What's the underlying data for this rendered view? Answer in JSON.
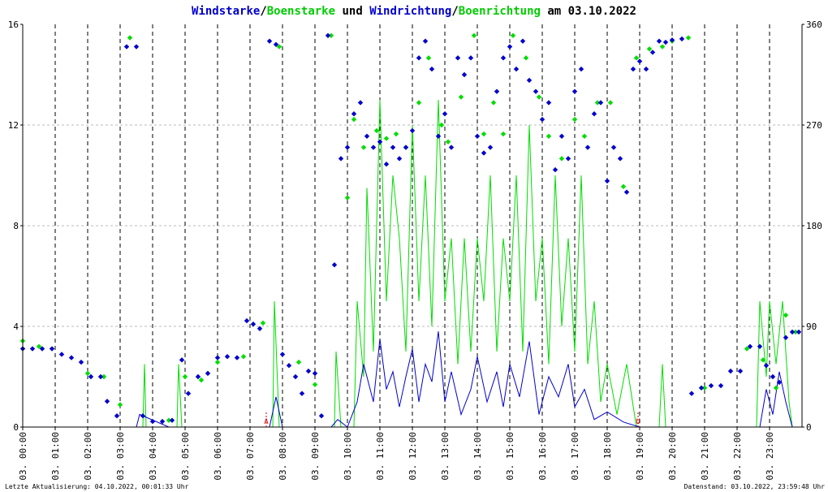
{
  "title_parts": [
    {
      "text": "Windstarke",
      "color": "#0000cc"
    },
    {
      "text": "/",
      "color": "#000000"
    },
    {
      "text": "Boenstarke",
      "color": "#00cc00"
    },
    {
      "text": " und ",
      "color": "#000000"
    },
    {
      "text": "Windrichtung",
      "color": "#0000cc"
    },
    {
      "text": "/",
      "color": "#000000"
    },
    {
      "text": "Boenrichtung",
      "color": "#00cc00"
    },
    {
      "text": " am 03.10.2022",
      "color": "#000000"
    }
  ],
  "footer_left": "Letzte Aktualisierung: 04.10.2022, 00:01:33 Uhr",
  "footer_right": "Datenstand: 03.10.2022, 23:59:48 Uhr",
  "colors": {
    "wind": "#0000cc",
    "gust": "#00dd00",
    "grid": "#bbbbbb",
    "axis": "#000000",
    "marker": "#cc0000"
  },
  "chart_data": {
    "type": "line",
    "x_ticks": [
      "03. 00:00",
      "03. 01:00",
      "03. 02:00",
      "03. 03:00",
      "03. 04:00",
      "03. 05:00",
      "03. 06:00",
      "03. 07:00",
      "03. 08:00",
      "03. 09:00",
      "03. 10:00",
      "03. 11:00",
      "03. 12:00",
      "03. 13:00",
      "03. 14:00",
      "03. 15:00",
      "03. 16:00",
      "03. 17:00",
      "03. 18:00",
      "03. 19:00",
      "03. 20:00",
      "03. 21:00",
      "03. 22:00",
      "03. 23:00"
    ],
    "xlim_hours": [
      0,
      24
    ],
    "y_left": {
      "ticks": [
        "0",
        "4",
        "8",
        "12",
        "16"
      ],
      "ylim": [
        0,
        16
      ]
    },
    "y_right": {
      "ticks": [
        "0",
        "90",
        "180",
        "270",
        "360"
      ],
      "ylim": [
        0,
        360
      ]
    },
    "markers": [
      {
        "label": "A",
        "hour": 7.5
      },
      {
        "label": "U",
        "hour": 18.95
      }
    ],
    "series": [
      {
        "name": "Windstarke",
        "axis": "left",
        "style": "line",
        "color": "#0000cc",
        "points": [
          [
            0,
            0
          ],
          [
            3.5,
            0
          ],
          [
            3.6,
            0.5
          ],
          [
            4.5,
            0
          ],
          [
            7.6,
            0
          ],
          [
            7.8,
            1.2
          ],
          [
            8,
            0
          ],
          [
            9.5,
            0
          ],
          [
            9.7,
            0.3
          ],
          [
            10,
            0
          ],
          [
            10.3,
            1
          ],
          [
            10.5,
            2.5
          ],
          [
            10.8,
            1
          ],
          [
            11,
            3.5
          ],
          [
            11.2,
            1.5
          ],
          [
            11.4,
            2.2
          ],
          [
            11.6,
            0.8
          ],
          [
            11.8,
            2
          ],
          [
            12,
            3.1
          ],
          [
            12.2,
            1
          ],
          [
            12.4,
            2.5
          ],
          [
            12.6,
            1.8
          ],
          [
            12.8,
            3.8
          ],
          [
            13,
            1
          ],
          [
            13.2,
            2.2
          ],
          [
            13.5,
            0.5
          ],
          [
            13.8,
            1.5
          ],
          [
            14,
            2.8
          ],
          [
            14.3,
            1
          ],
          [
            14.6,
            2.2
          ],
          [
            14.8,
            0.8
          ],
          [
            15,
            2.5
          ],
          [
            15.3,
            1.2
          ],
          [
            15.6,
            3.4
          ],
          [
            15.9,
            0.5
          ],
          [
            16.2,
            2
          ],
          [
            16.5,
            1.2
          ],
          [
            16.8,
            2.5
          ],
          [
            17,
            0.8
          ],
          [
            17.3,
            1.5
          ],
          [
            17.6,
            0.3
          ],
          [
            18,
            0.6
          ],
          [
            18.5,
            0.2
          ],
          [
            19,
            0
          ],
          [
            22.7,
            0
          ],
          [
            22.9,
            1.5
          ],
          [
            23.1,
            0.5
          ],
          [
            23.3,
            2.2
          ],
          [
            23.5,
            1
          ],
          [
            23.7,
            0
          ]
        ]
      },
      {
        "name": "Boenstarke",
        "axis": "left",
        "style": "line",
        "color": "#00dd00",
        "points": [
          [
            0,
            0
          ],
          [
            3.7,
            0
          ],
          [
            3.75,
            2.5
          ],
          [
            3.8,
            0
          ],
          [
            4.75,
            0
          ],
          [
            4.8,
            2.5
          ],
          [
            4.9,
            0
          ],
          [
            7.7,
            0
          ],
          [
            7.75,
            5
          ],
          [
            7.9,
            0
          ],
          [
            9.6,
            0
          ],
          [
            9.65,
            3
          ],
          [
            9.8,
            0
          ],
          [
            10.2,
            0
          ],
          [
            10.3,
            5
          ],
          [
            10.5,
            2
          ],
          [
            10.6,
            9.5
          ],
          [
            10.8,
            3
          ],
          [
            11,
            13
          ],
          [
            11.2,
            5
          ],
          [
            11.4,
            10
          ],
          [
            11.6,
            7.5
          ],
          [
            11.8,
            3
          ],
          [
            12,
            12
          ],
          [
            12.2,
            5
          ],
          [
            12.4,
            10
          ],
          [
            12.6,
            4
          ],
          [
            12.8,
            13
          ],
          [
            13,
            5
          ],
          [
            13.2,
            7.5
          ],
          [
            13.4,
            2.5
          ],
          [
            13.6,
            7.5
          ],
          [
            13.8,
            3
          ],
          [
            14,
            7.5
          ],
          [
            14.2,
            5
          ],
          [
            14.4,
            10
          ],
          [
            14.6,
            3
          ],
          [
            14.8,
            7.5
          ],
          [
            15,
            5
          ],
          [
            15.2,
            10
          ],
          [
            15.4,
            3
          ],
          [
            15.6,
            12
          ],
          [
            15.8,
            5
          ],
          [
            16,
            7.5
          ],
          [
            16.2,
            2.5
          ],
          [
            16.4,
            10
          ],
          [
            16.6,
            4
          ],
          [
            16.8,
            7.5
          ],
          [
            17,
            3
          ],
          [
            17.2,
            10
          ],
          [
            17.4,
            2.5
          ],
          [
            17.6,
            5
          ],
          [
            17.8,
            1
          ],
          [
            18,
            2.5
          ],
          [
            18.3,
            0.5
          ],
          [
            18.6,
            2.5
          ],
          [
            18.9,
            0
          ],
          [
            19.6,
            0
          ],
          [
            19.7,
            2.5
          ],
          [
            19.8,
            0
          ],
          [
            22.6,
            0
          ],
          [
            22.7,
            5
          ],
          [
            22.9,
            2
          ],
          [
            23,
            5
          ],
          [
            23.2,
            2.5
          ],
          [
            23.4,
            5
          ],
          [
            23.6,
            1
          ],
          [
            23.7,
            0
          ]
        ]
      },
      {
        "name": "Windrichtung",
        "axis": "right",
        "style": "points",
        "color": "#0000cc",
        "points": [
          [
            0,
            70
          ],
          [
            0.3,
            70
          ],
          [
            0.6,
            70
          ],
          [
            0.9,
            70
          ],
          [
            1.2,
            65
          ],
          [
            1.5,
            62
          ],
          [
            1.8,
            58
          ],
          [
            2.1,
            45
          ],
          [
            2.4,
            45
          ],
          [
            2.6,
            23
          ],
          [
            2.9,
            10
          ],
          [
            3.2,
            340
          ],
          [
            3.5,
            340
          ],
          [
            3.7,
            10
          ],
          [
            4.0,
            5
          ],
          [
            4.3,
            5
          ],
          [
            4.6,
            6
          ],
          [
            4.9,
            60
          ],
          [
            5.1,
            30
          ],
          [
            5.4,
            45
          ],
          [
            5.7,
            48
          ],
          [
            6.0,
            62
          ],
          [
            6.3,
            63
          ],
          [
            6.6,
            62
          ],
          [
            6.9,
            95
          ],
          [
            7.1,
            92
          ],
          [
            7.3,
            88
          ],
          [
            7.6,
            345
          ],
          [
            7.8,
            342
          ],
          [
            8.0,
            65
          ],
          [
            8.2,
            55
          ],
          [
            8.4,
            45
          ],
          [
            8.6,
            30
          ],
          [
            8.8,
            50
          ],
          [
            9.0,
            48
          ],
          [
            9.2,
            10
          ],
          [
            9.4,
            350
          ],
          [
            9.6,
            145
          ],
          [
            9.8,
            240
          ],
          [
            10.0,
            250
          ],
          [
            10.2,
            280
          ],
          [
            10.4,
            290
          ],
          [
            10.6,
            260
          ],
          [
            10.8,
            250
          ],
          [
            11.0,
            255
          ],
          [
            11.2,
            235
          ],
          [
            11.4,
            250
          ],
          [
            11.6,
            240
          ],
          [
            11.8,
            250
          ],
          [
            12.0,
            265
          ],
          [
            12.2,
            330
          ],
          [
            12.4,
            345
          ],
          [
            12.6,
            320
          ],
          [
            12.8,
            260
          ],
          [
            13.0,
            280
          ],
          [
            13.2,
            250
          ],
          [
            13.4,
            330
          ],
          [
            13.6,
            315
          ],
          [
            13.8,
            330
          ],
          [
            14.0,
            260
          ],
          [
            14.2,
            245
          ],
          [
            14.4,
            250
          ],
          [
            14.6,
            300
          ],
          [
            14.8,
            330
          ],
          [
            15.0,
            340
          ],
          [
            15.2,
            320
          ],
          [
            15.4,
            345
          ],
          [
            15.6,
            310
          ],
          [
            15.8,
            300
          ],
          [
            16.0,
            275
          ],
          [
            16.2,
            290
          ],
          [
            16.4,
            230
          ],
          [
            16.6,
            260
          ],
          [
            16.8,
            240
          ],
          [
            17.0,
            300
          ],
          [
            17.2,
            320
          ],
          [
            17.4,
            250
          ],
          [
            17.6,
            280
          ],
          [
            17.8,
            290
          ],
          [
            18.0,
            220
          ],
          [
            18.2,
            250
          ],
          [
            18.4,
            240
          ],
          [
            18.6,
            210
          ],
          [
            18.8,
            320
          ],
          [
            19.0,
            327
          ],
          [
            19.2,
            320
          ],
          [
            19.4,
            335
          ],
          [
            19.6,
            345
          ],
          [
            19.8,
            344
          ],
          [
            20.0,
            346
          ],
          [
            20.3,
            347
          ],
          [
            20.6,
            30
          ],
          [
            20.9,
            35
          ],
          [
            21.2,
            37
          ],
          [
            21.5,
            37
          ],
          [
            21.8,
            50
          ],
          [
            22.1,
            50
          ],
          [
            22.4,
            72
          ],
          [
            22.7,
            72
          ],
          [
            22.9,
            55
          ],
          [
            23.1,
            45
          ],
          [
            23.3,
            40
          ],
          [
            23.5,
            80
          ],
          [
            23.7,
            85
          ],
          [
            23.9,
            85
          ]
        ]
      },
      {
        "name": "Boenrichtung",
        "axis": "right",
        "style": "points",
        "color": "#00dd00",
        "points": [
          [
            0,
            77
          ],
          [
            0.5,
            72
          ],
          [
            2.0,
            48
          ],
          [
            2.5,
            45
          ],
          [
            3.0,
            20
          ],
          [
            3.3,
            348
          ],
          [
            4.5,
            6
          ],
          [
            5.0,
            45
          ],
          [
            5.5,
            42
          ],
          [
            6.0,
            58
          ],
          [
            6.8,
            63
          ],
          [
            7.4,
            93
          ],
          [
            7.9,
            340
          ],
          [
            8.5,
            58
          ],
          [
            9.0,
            38
          ],
          [
            9.5,
            350
          ],
          [
            10.0,
            205
          ],
          [
            10.2,
            275
          ],
          [
            10.5,
            250
          ],
          [
            10.9,
            265
          ],
          [
            11.2,
            258
          ],
          [
            11.5,
            262
          ],
          [
            11.8,
            250
          ],
          [
            12.2,
            290
          ],
          [
            12.5,
            330
          ],
          [
            12.9,
            270
          ],
          [
            13.1,
            255
          ],
          [
            13.5,
            295
          ],
          [
            13.9,
            350
          ],
          [
            14.2,
            262
          ],
          [
            14.5,
            290
          ],
          [
            14.8,
            262
          ],
          [
            15.1,
            350
          ],
          [
            15.5,
            330
          ],
          [
            15.9,
            295
          ],
          [
            16.2,
            260
          ],
          [
            16.6,
            240
          ],
          [
            17.0,
            275
          ],
          [
            17.3,
            260
          ],
          [
            17.7,
            290
          ],
          [
            18.1,
            290
          ],
          [
            18.5,
            215
          ],
          [
            18.9,
            330
          ],
          [
            19.3,
            338
          ],
          [
            19.7,
            340
          ],
          [
            20.0,
            345
          ],
          [
            20.5,
            348
          ],
          [
            21.0,
            35
          ],
          [
            22.3,
            70
          ],
          [
            22.8,
            60
          ],
          [
            23.2,
            35
          ],
          [
            23.5,
            100
          ],
          [
            23.8,
            85
          ]
        ]
      }
    ]
  }
}
